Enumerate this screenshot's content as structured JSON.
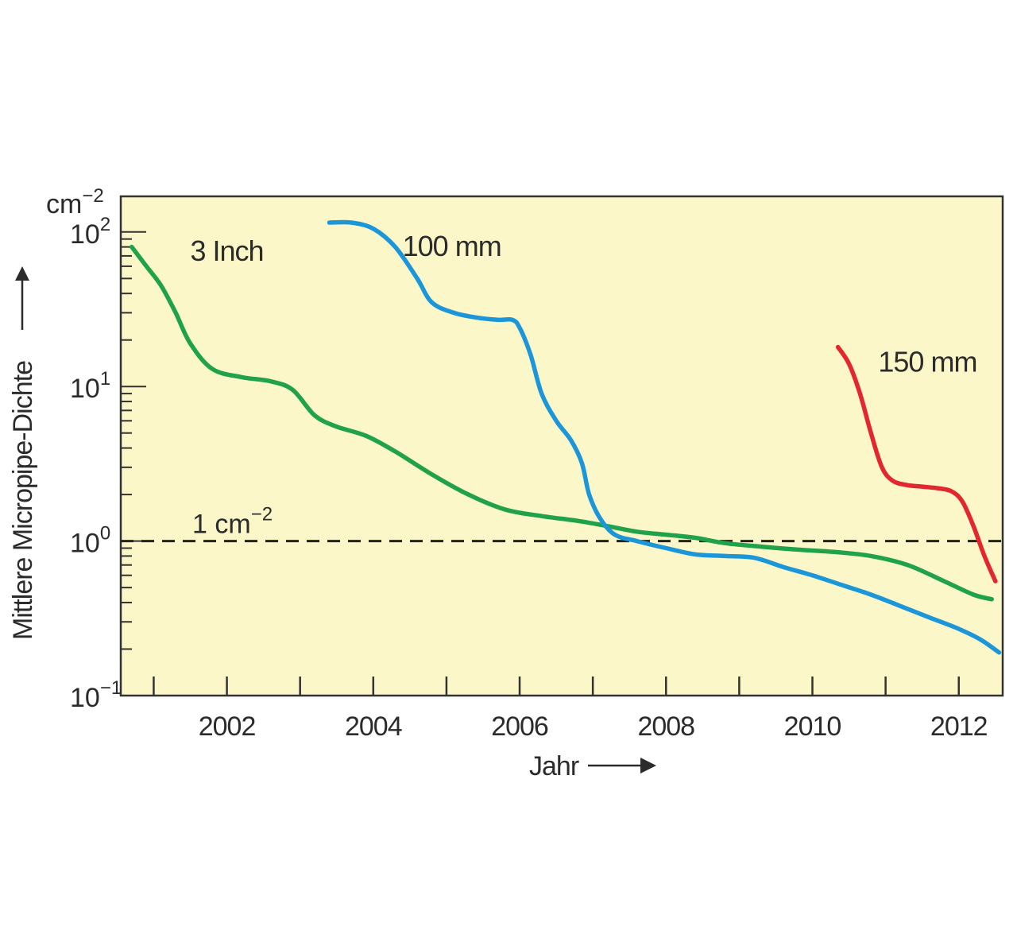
{
  "chart_data": {
    "type": "line",
    "xlabel": "Jahr",
    "ylabel": "Mittlere Micropipe-Dichte",
    "yunit_base": "cm",
    "yunit_exp": "−2",
    "yscale": "log",
    "ylim": [
      0.1,
      170
    ],
    "xlim": [
      2000.55,
      2012.6
    ],
    "x_ticks": [
      2002,
      2004,
      2006,
      2008,
      2010,
      2012
    ],
    "x_tick_labels": [
      "2002",
      "2004",
      "2006",
      "2008",
      "2010",
      "2012"
    ],
    "x_minor_ticks": [
      2001,
      2003,
      2005,
      2007,
      2009,
      2011
    ],
    "y_ticks": [
      {
        "value": 0.1,
        "base": "10",
        "exp": "−1"
      },
      {
        "value": 1,
        "base": "10",
        "exp": "0"
      },
      {
        "value": 10,
        "base": "10",
        "exp": "1"
      },
      {
        "value": 100,
        "base": "10",
        "exp": "2"
      }
    ],
    "reference_line": {
      "value": 1.0,
      "label_base": "1 cm",
      "label_exp": "−2",
      "style": "dashed"
    },
    "background_color": "#fbf7c9",
    "series": [
      {
        "name": "3 Inch",
        "color": "#1fa24a",
        "x": [
          2000.7,
          2000.9,
          2001.1,
          2001.3,
          2001.5,
          2001.8,
          2002.2,
          2002.6,
          2002.9,
          2003.2,
          2003.5,
          2003.9,
          2004.3,
          2004.8,
          2005.3,
          2005.8,
          2006.3,
          2006.8,
          2007.2,
          2007.6,
          2008.0,
          2008.4,
          2008.8,
          2009.3,
          2009.8,
          2010.3,
          2010.8,
          2011.3,
          2011.8,
          2012.2,
          2012.45
        ],
        "y": [
          80,
          60,
          45,
          30,
          19,
          13,
          11.5,
          10.8,
          9.5,
          6.5,
          5.5,
          4.8,
          3.8,
          2.7,
          2.0,
          1.6,
          1.45,
          1.35,
          1.25,
          1.15,
          1.1,
          1.05,
          0.97,
          0.92,
          0.88,
          0.85,
          0.8,
          0.7,
          0.55,
          0.45,
          0.42
        ]
      },
      {
        "name": "100 mm",
        "color": "#1b96d9",
        "x": [
          2003.4,
          2003.7,
          2004.0,
          2004.3,
          2004.6,
          2004.8,
          2005.1,
          2005.4,
          2005.7,
          2005.9,
          2006.0,
          2006.15,
          2006.3,
          2006.5,
          2006.7,
          2006.85,
          2006.95,
          2007.1,
          2007.3,
          2007.6,
          2008.0,
          2008.4,
          2008.8,
          2009.2,
          2009.6,
          2010.0,
          2010.4,
          2010.8,
          2011.2,
          2011.6,
          2012.0,
          2012.3,
          2012.55
        ],
        "y": [
          115,
          115,
          105,
          80,
          50,
          35,
          30,
          28,
          27,
          27,
          24,
          16,
          9,
          6,
          4.5,
          3.2,
          2.0,
          1.4,
          1.1,
          1.0,
          0.9,
          0.82,
          0.8,
          0.78,
          0.68,
          0.6,
          0.52,
          0.45,
          0.38,
          0.32,
          0.27,
          0.23,
          0.19
        ]
      },
      {
        "name": "150 mm",
        "color": "#e3272e",
        "x": [
          2010.35,
          2010.5,
          2010.65,
          2010.8,
          2010.95,
          2011.1,
          2011.3,
          2011.5,
          2011.7,
          2011.9,
          2012.05,
          2012.2,
          2012.35,
          2012.5
        ],
        "y": [
          18,
          14,
          9,
          5,
          3,
          2.45,
          2.3,
          2.25,
          2.2,
          2.1,
          1.8,
          1.25,
          0.8,
          0.55
        ]
      }
    ],
    "series_label_anchor_x": [
      2001.5,
      2004.4,
      2010.9
    ],
    "series_label_anchor_y": [
      65,
      70,
      12.5
    ]
  }
}
